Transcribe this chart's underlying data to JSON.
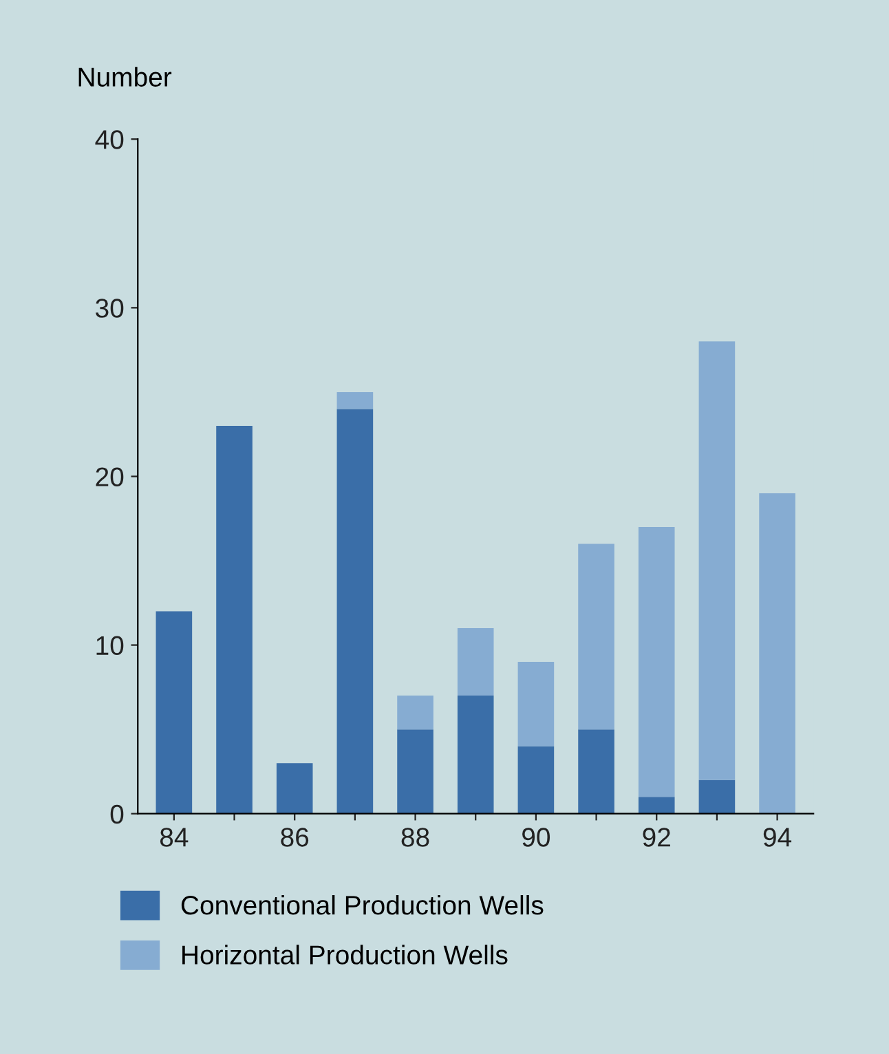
{
  "chart_data": {
    "type": "bar",
    "ylabel": "Number",
    "stacked": true,
    "categories": [
      "84",
      null,
      "86",
      null,
      "88",
      null,
      "90",
      null,
      "92",
      null,
      "94"
    ],
    "series": [
      {
        "name": "Conventional Production Wells",
        "color": "#3a6ea8",
        "values": [
          12,
          23,
          3,
          24,
          5,
          7,
          4,
          5,
          1,
          2,
          0
        ]
      },
      {
        "name": "Horizontal Production Wells",
        "color": "#86acd2",
        "values": [
          0,
          0,
          0,
          1,
          2,
          4,
          5,
          11,
          16,
          26,
          19
        ]
      }
    ],
    "ylim": [
      0,
      40
    ],
    "yticks": [
      0,
      10,
      20,
      30,
      40
    ],
    "grid": false,
    "legend": "bottom"
  }
}
